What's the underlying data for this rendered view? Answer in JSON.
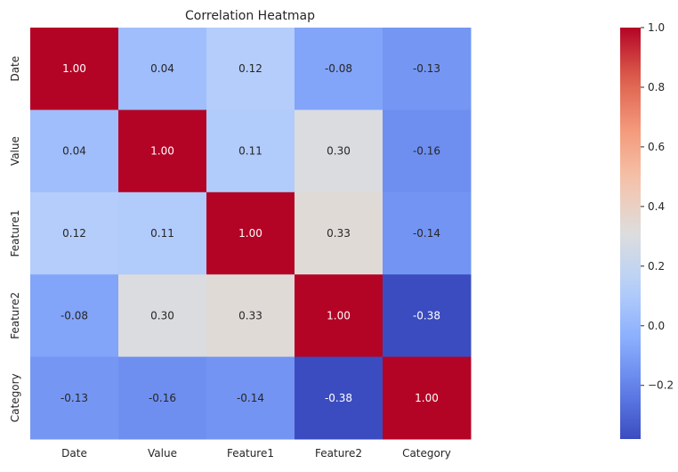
{
  "chart_data": {
    "type": "heatmap",
    "title": "Correlation Heatmap",
    "x_labels": [
      "Date",
      "Value",
      "Feature1",
      "Feature2",
      "Category"
    ],
    "y_labels": [
      "Date",
      "Value",
      "Feature1",
      "Feature2",
      "Category"
    ],
    "values": [
      [
        1.0,
        0.04,
        0.12,
        -0.08,
        -0.13
      ],
      [
        0.04,
        1.0,
        0.11,
        0.3,
        -0.16
      ],
      [
        0.12,
        0.11,
        1.0,
        0.33,
        -0.14
      ],
      [
        -0.08,
        0.3,
        0.33,
        1.0,
        -0.38
      ],
      [
        -0.13,
        -0.16,
        -0.14,
        -0.38,
        1.0
      ]
    ],
    "cell_labels": [
      [
        "1.00",
        "0.04",
        "0.12",
        "-0.08",
        "-0.13"
      ],
      [
        "0.04",
        "1.00",
        "0.11",
        "0.30",
        "-0.16"
      ],
      [
        "0.12",
        "0.11",
        "1.00",
        "0.33",
        "-0.14"
      ],
      [
        "-0.08",
        "0.30",
        "0.33",
        "1.00",
        "-0.38"
      ],
      [
        "-0.13",
        "-0.16",
        "-0.14",
        "-0.38",
        "1.00"
      ]
    ],
    "colormap": "coolwarm",
    "vmin": -0.38,
    "vmax": 1.0,
    "colorbar": {
      "ticks": [
        -0.2,
        0.0,
        0.2,
        0.4,
        0.6,
        0.8,
        1.0
      ],
      "tick_labels": [
        "−0.2",
        "0.0",
        "0.2",
        "0.4",
        "0.6",
        "0.8",
        "1.0"
      ],
      "placement": "right"
    },
    "grid": false,
    "colors": {
      "cold": "#3b4cc0",
      "neutral": "#dddddd",
      "hot": "#b40426",
      "text_dark": "#262626",
      "text_light": "#ffffff"
    }
  }
}
